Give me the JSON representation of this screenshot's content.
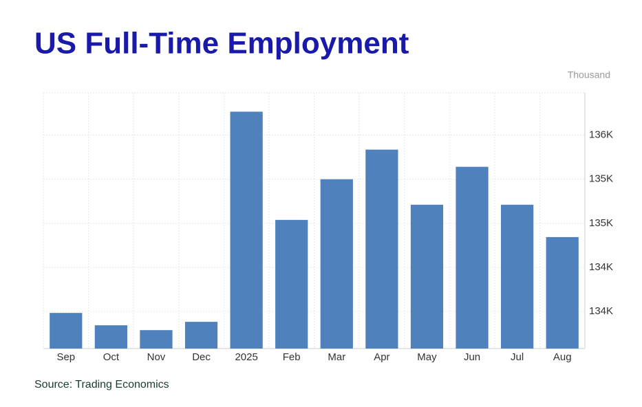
{
  "chart_data": {
    "type": "bar",
    "title": "US Full-Time Employment",
    "unit_label": "Thousand",
    "source": "Source: Trading Economics",
    "categories": [
      "Sep",
      "Oct",
      "Nov",
      "Dec",
      "2025",
      "Feb",
      "Mar",
      "Apr",
      "May",
      "Jun",
      "Jul",
      "Aug"
    ],
    "values": [
      133734,
      133594,
      133539,
      133633,
      136016,
      134789,
      135250,
      135586,
      134961,
      135391,
      134961,
      134594
    ],
    "color": "#4f81bd",
    "ylim": [
      133330,
      136230
    ],
    "yticks": [
      {
        "value": 133750,
        "label": "134K"
      },
      {
        "value": 134250,
        "label": "134K"
      },
      {
        "value": 134750,
        "label": "135K"
      },
      {
        "value": 135250,
        "label": "135K"
      },
      {
        "value": 135750,
        "label": "136K"
      }
    ],
    "grid": true
  }
}
